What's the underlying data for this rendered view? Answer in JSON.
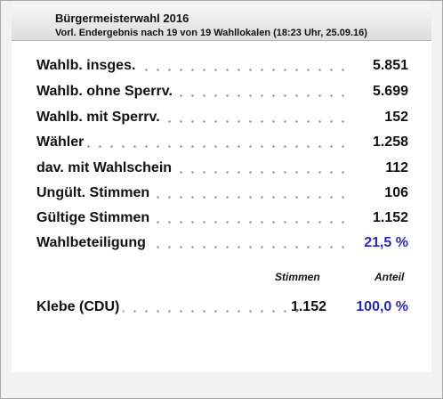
{
  "header": {
    "title": "Bürgermeisterwahl 2016",
    "subtitle": "Vorl. Endergebnis nach 19 von 19 Wahllokalen (18:23 Uhr, 25.09.16)"
  },
  "stats": [
    {
      "label": "Wahlb. insges.",
      "value": "5.851"
    },
    {
      "label": "Wahlb. ohne Sperrv.",
      "value": "5.699"
    },
    {
      "label": "Wahlb. mit Sperrv.",
      "value": "152"
    },
    {
      "label": "Wähler",
      "value": "1.258"
    },
    {
      "label": "dav. mit Wahlschein",
      "value": "112"
    },
    {
      "label": "Ungült. Stimmen",
      "value": "106"
    },
    {
      "label": "Gültige Stimmen",
      "value": "1.152"
    },
    {
      "label": "Wahlbeteiligung",
      "value": "21,5 %"
    }
  ],
  "columns": {
    "votes": "Stimmen",
    "share": "Anteil"
  },
  "candidates": [
    {
      "name": "Klebe (CDU)",
      "votes": "1.152",
      "share": "100,0 %"
    }
  ],
  "colors": {
    "accent_blue": "#2a2ab0",
    "header_bg": "#e6e6e6",
    "panel_bg": "#f2f2f2"
  }
}
